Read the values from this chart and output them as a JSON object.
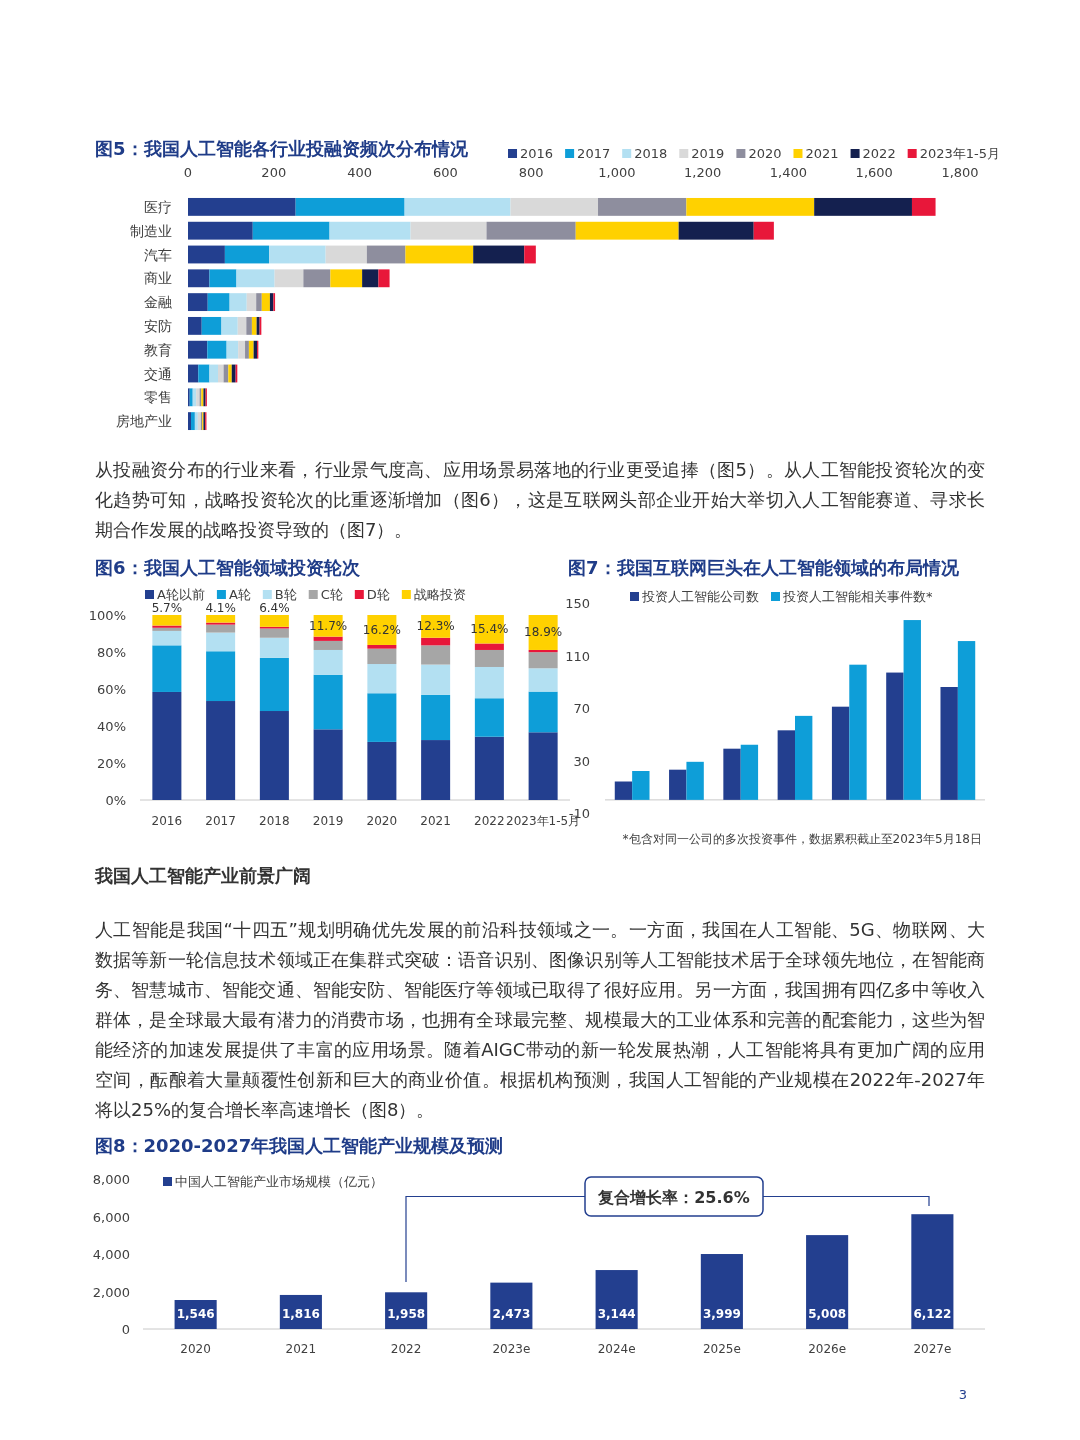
{
  "chart_data": [
    {
      "type": "bar",
      "orientation": "horizontal",
      "stacked": true,
      "title": "图5：我国人工智能各行业投融资频次分布情况",
      "legend": "top right",
      "categories": [
        "医疗",
        "制造业",
        "汽车",
        "商业",
        "金融",
        "安防",
        "教育",
        "交通",
        "零售",
        "房地产业"
      ],
      "xlim": [
        0,
        1800
      ],
      "xticks": [
        0,
        200,
        400,
        600,
        800,
        {
          "value": 1000,
          "label": "1,000"
        },
        {
          "value": 1200,
          "label": "1,200"
        },
        {
          "value": 1400,
          "label": "1,400"
        },
        {
          "value": 1600,
          "label": "1,600"
        },
        {
          "value": 1800,
          "label": "1,800"
        }
      ],
      "series": [
        {
          "name": "2016",
          "color": "#233f8f",
          "values": [
            251,
            151,
            86,
            50,
            46,
            32,
            45,
            24,
            4,
            7
          ]
        },
        {
          "name": "2017",
          "color": "#0e9ed8",
          "values": [
            254,
            179,
            103,
            63,
            51,
            46,
            45,
            26,
            7,
            9
          ]
        },
        {
          "name": "2018",
          "color": "#b3e0f2",
          "values": [
            247,
            189,
            132,
            89,
            40,
            38,
            27,
            20,
            8,
            7
          ]
        },
        {
          "name": "2019",
          "color": "#d9d9d9",
          "values": [
            204,
            177,
            96,
            67,
            22,
            20,
            16,
            13,
            8,
            7
          ]
        },
        {
          "name": "2020",
          "color": "#8e8e9e",
          "values": [
            206,
            208,
            90,
            63,
            13,
            13,
            9,
            11,
            4,
            3
          ]
        },
        {
          "name": "2021",
          "color": "#ffd100",
          "values": [
            298,
            240,
            158,
            74,
            19,
            11,
            11,
            8,
            5,
            3
          ]
        },
        {
          "name": "2022",
          "color": "#14204f",
          "values": [
            228,
            175,
            119,
            38,
            8,
            7,
            8,
            9,
            5,
            4
          ]
        },
        {
          "name": "2023年1-5月",
          "color": "#e8173a",
          "values": [
            55,
            47,
            27,
            26,
            4,
            4,
            3,
            4,
            3,
            3
          ]
        }
      ]
    },
    {
      "type": "other",
      "annotations": [
        "从投融资分布的行业来看，行业景气度高、应用场景易落地的行业更受追捧（图5）。从人工智能投资轮次的变化趋势可知，战略投资轮次的比重逐渐增加（图6），这是互联网头部企业开始大举切入人工智能赛道、寻求长期合作发展的战略投资导致的（图7）。"
      ]
    },
    {
      "type": "bar",
      "stacked": true,
      "title": "图6：我国人工智能领域投资轮次",
      "legend": "top",
      "categories": [
        "2016",
        "2017",
        "2018",
        "2019",
        "2020",
        "2021",
        "2022",
        "2023年1-5月"
      ],
      "ylim": [
        0,
        100
      ],
      "yticks": [
        {
          "value": 0,
          "label": "0%"
        },
        {
          "value": 20,
          "label": "20%"
        },
        {
          "value": 40,
          "label": "40%"
        },
        {
          "value": 60,
          "label": "60%"
        },
        {
          "value": 80,
          "label": "80%"
        },
        {
          "value": 100,
          "label": "100%"
        }
      ],
      "series": [
        {
          "name": "A轮以前",
          "color": "#233f8f",
          "values": [
            58.4,
            53.5,
            48.1,
            38.2,
            31.4,
            32.4,
            34.2,
            36.6
          ]
        },
        {
          "name": "A轮",
          "color": "#0e9ed8",
          "values": [
            25.2,
            26.9,
            28.7,
            29.5,
            26.3,
            24.4,
            20.8,
            22.0
          ]
        },
        {
          "name": "B轮",
          "color": "#b3e0f2",
          "values": [
            7.8,
            10.1,
            10.9,
            13.4,
            15.8,
            16.4,
            16.9,
            12.6
          ]
        },
        {
          "name": "C轮",
          "color": "#a6a6a6",
          "values": [
            1.7,
            4.3,
            5.0,
            4.9,
            8.3,
            10.4,
            9.2,
            8.7
          ]
        },
        {
          "name": "D轮",
          "color": "#e8173a",
          "values": [
            1.2,
            1.1,
            0.9,
            2.3,
            2.0,
            4.1,
            3.5,
            1.2
          ]
        },
        {
          "name": "战略投资",
          "color": "#ffd100",
          "values": [
            5.7,
            4.1,
            6.4,
            11.7,
            16.2,
            12.3,
            15.4,
            18.9
          ],
          "value_labels": [
            "5.7%",
            "4.1%",
            "6.4%",
            "11.7%",
            "16.2%",
            "12.3%",
            "15.4%",
            "18.9%"
          ]
        }
      ]
    },
    {
      "type": "bar",
      "title": "图7：我国互联网巨头在人工智能领域的布局情况",
      "legend": "top",
      "categories": [
        null,
        null,
        null,
        null,
        null,
        null,
        null
      ],
      "ylim": [
        -10,
        150
      ],
      "yticks": [
        -10,
        30,
        70,
        110,
        150
      ],
      "annotations": [
        "*包含对同一公司的多次投资事件，数据累积截止至2023年5月18日"
      ],
      "series": [
        {
          "name": "投资人工智能公司数",
          "color": "#233f8f",
          "values": [
            14,
            23,
            39,
            53,
            71,
            97,
            86
          ]
        },
        {
          "name": "投资人工智能相关事件数*",
          "color": "#0e9ed8",
          "values": [
            22,
            29,
            42,
            64,
            103,
            137,
            121
          ]
        }
      ]
    },
    {
      "type": "other",
      "title": "我国人工智能产业前景广阔",
      "annotations": [
        "人工智能是我国“十四五”规划明确优先发展的前沿科技领域之一。一方面，我国在人工智能、5G、物联网、大数据等新一轮信息技术领域正在集群式突破：语音识别、图像识别等人工智能技术居于全球领先地位，在智能商务、智慧城市、智能交通、智能安防、智能医疗等领域已取得了很好应用。另一方面，我国拥有四亿多中等收入群体，是全球最大最有潜力的消费市场，也拥有全球最完整、规模最大的工业体系和完善的配套能力，这些为智能经济的加速发展提供了丰富的应用场景。随着AIGC带动的新一轮发展热潮，人工智能将具有更加广阔的应用空间，酝酿着大量颠覆性创新和巨大的商业价值。根据机构预测，我国人工智能的产业规模在2022年-2027年将以25%的复合增长率高速增长（图8）。"
      ]
    },
    {
      "type": "bar",
      "title": "图8：2020-2027年我国人工智能产业规模及预测",
      "legend": "top left",
      "categories": [
        "2020",
        "2021",
        "2022",
        "2023e",
        "2024e",
        "2025e",
        "2026e",
        "2027e"
      ],
      "ylim": [
        0,
        8000
      ],
      "yticks": [
        0,
        {
          "value": 2000,
          "label": "2,000"
        },
        {
          "value": 4000,
          "label": "4,000"
        },
        {
          "value": 6000,
          "label": "6,000"
        },
        {
          "value": 8000,
          "label": "8,000"
        }
      ],
      "annotations": [
        "复合增长率：25.6%"
      ],
      "series": [
        {
          "name": "中国人工智能产业市场规模（亿元）",
          "color": "#233f8f",
          "values": [
            1546,
            1816,
            1958,
            2473,
            3144,
            3999,
            5008,
            6122
          ],
          "value_labels": [
            "1,546",
            "1,816",
            "1,958",
            "2,473",
            "3,144",
            "3,999",
            "5,008",
            "6,122"
          ]
        }
      ]
    },
    {
      "type": "other",
      "annotations": [
        "3"
      ]
    }
  ]
}
